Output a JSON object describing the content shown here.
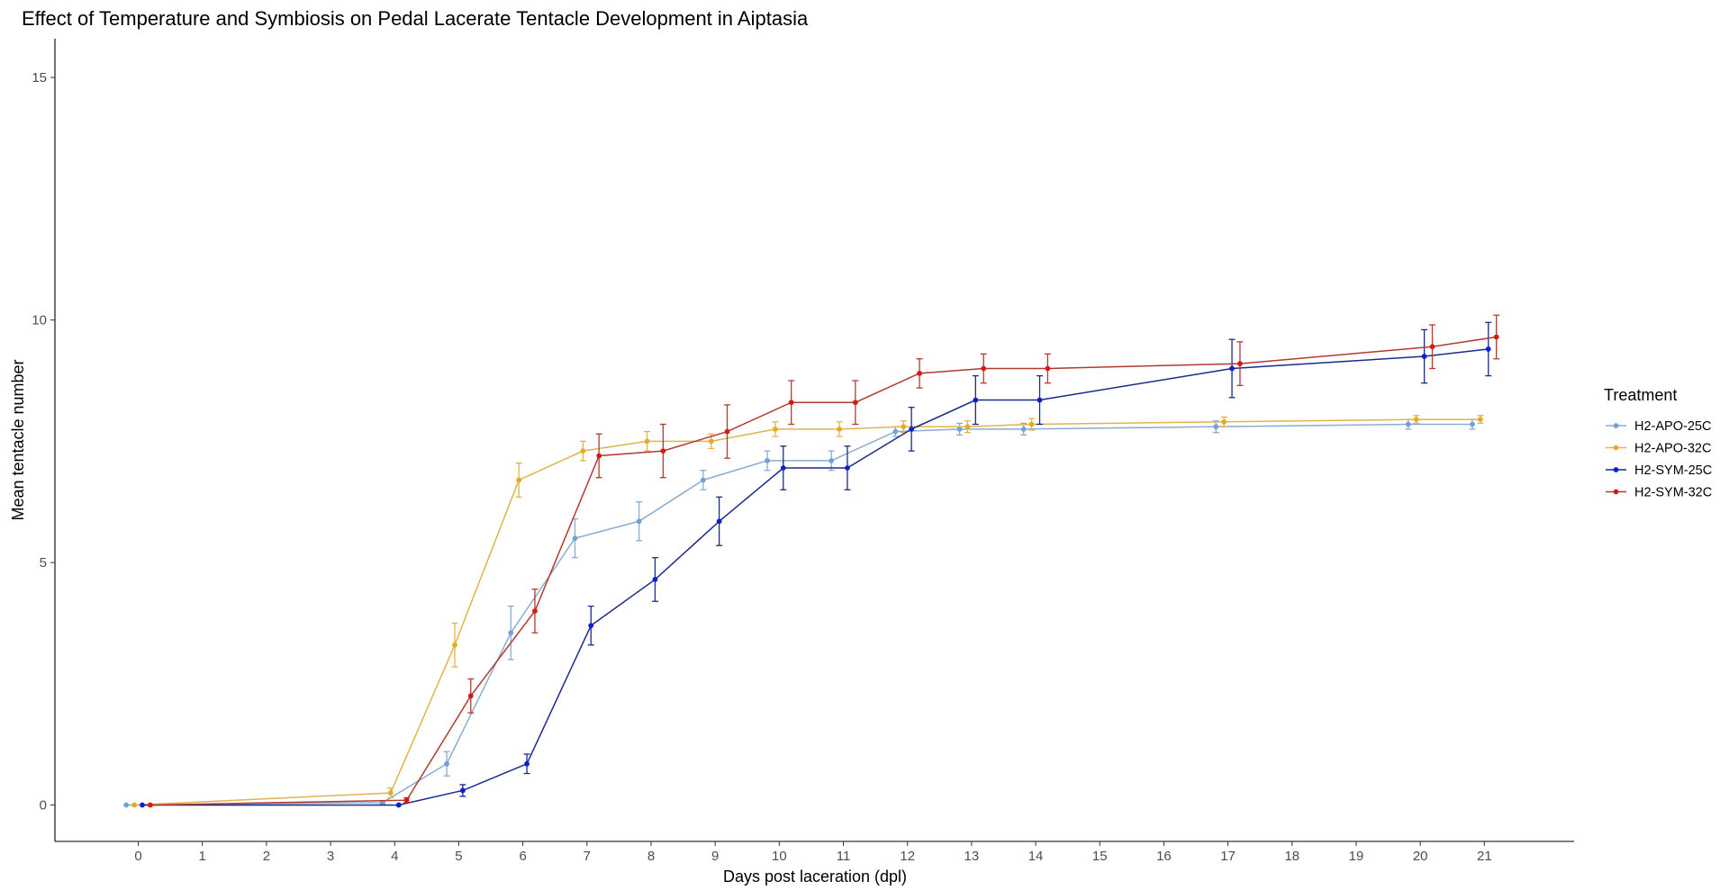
{
  "chart_data": {
    "type": "line",
    "title": "Effect of Temperature and Symbiosis on Pedal Lacerate Tentacle Development in Aiptasia",
    "xlabel": "Days post laceration (dpl)",
    "ylabel": "Mean tentacle number",
    "xlim": [
      -1.3,
      22.4
    ],
    "ylim": [
      -0.75,
      15.8
    ],
    "xticks": [
      0,
      1,
      2,
      3,
      4,
      5,
      6,
      7,
      8,
      9,
      10,
      11,
      12,
      13,
      14,
      15,
      16,
      17,
      18,
      19,
      20,
      21
    ],
    "yticks": [
      0,
      5,
      10,
      15
    ],
    "grid": false,
    "error_bars": true,
    "legend": {
      "title": "Treatment",
      "position": "right"
    },
    "series": [
      {
        "name": "H2-APO-25C",
        "color": "#6fa2d6",
        "line_color": "#8aaccf",
        "points": [
          {
            "x": 0,
            "y": 0.0,
            "err": 0.0
          },
          {
            "x": 4,
            "y": 0.05,
            "err": 0.03
          },
          {
            "x": 5,
            "y": 0.85,
            "err": 0.25
          },
          {
            "x": 6,
            "y": 3.55,
            "err": 0.55
          },
          {
            "x": 7,
            "y": 5.5,
            "err": 0.4
          },
          {
            "x": 8,
            "y": 5.85,
            "err": 0.4
          },
          {
            "x": 9,
            "y": 6.7,
            "err": 0.2
          },
          {
            "x": 10,
            "y": 7.1,
            "err": 0.2
          },
          {
            "x": 11,
            "y": 7.1,
            "err": 0.2
          },
          {
            "x": 12,
            "y": 7.7,
            "err": 0.1
          },
          {
            "x": 13,
            "y": 7.75,
            "err": 0.12
          },
          {
            "x": 14,
            "y": 7.75,
            "err": 0.12
          },
          {
            "x": 17,
            "y": 7.8,
            "err": 0.12
          },
          {
            "x": 20,
            "y": 7.85,
            "err": 0.1
          },
          {
            "x": 21,
            "y": 7.85,
            "err": 0.1
          }
        ]
      },
      {
        "name": "H2-APO-32C",
        "color": "#e6ac1f",
        "line_color": "#e0b44c",
        "points": [
          {
            "x": 0,
            "y": 0.0,
            "err": 0.0
          },
          {
            "x": 4,
            "y": 0.25,
            "err": 0.1
          },
          {
            "x": 5,
            "y": 3.3,
            "err": 0.45
          },
          {
            "x": 6,
            "y": 6.7,
            "err": 0.35
          },
          {
            "x": 7,
            "y": 7.3,
            "err": 0.2
          },
          {
            "x": 8,
            "y": 7.5,
            "err": 0.2
          },
          {
            "x": 9,
            "y": 7.5,
            "err": 0.15
          },
          {
            "x": 10,
            "y": 7.75,
            "err": 0.15
          },
          {
            "x": 11,
            "y": 7.75,
            "err": 0.15
          },
          {
            "x": 12,
            "y": 7.8,
            "err": 0.12
          },
          {
            "x": 13,
            "y": 7.8,
            "err": 0.12
          },
          {
            "x": 14,
            "y": 7.85,
            "err": 0.12
          },
          {
            "x": 17,
            "y": 7.9,
            "err": 0.1
          },
          {
            "x": 20,
            "y": 7.95,
            "err": 0.08
          },
          {
            "x": 21,
            "y": 7.95,
            "err": 0.08
          }
        ]
      },
      {
        "name": "H2-SYM-25C",
        "color": "#0b1fd6",
        "line_color": "#1c2a8c",
        "points": [
          {
            "x": 0,
            "y": 0.0,
            "err": 0.0
          },
          {
            "x": 4,
            "y": 0.0,
            "err": 0.0
          },
          {
            "x": 5,
            "y": 0.3,
            "err": 0.12
          },
          {
            "x": 6,
            "y": 0.85,
            "err": 0.2
          },
          {
            "x": 7,
            "y": 3.7,
            "err": 0.4
          },
          {
            "x": 8,
            "y": 4.65,
            "err": 0.45
          },
          {
            "x": 9,
            "y": 5.85,
            "err": 0.5
          },
          {
            "x": 10,
            "y": 6.95,
            "err": 0.45
          },
          {
            "x": 11,
            "y": 6.95,
            "err": 0.45
          },
          {
            "x": 12,
            "y": 7.75,
            "err": 0.45
          },
          {
            "x": 13,
            "y": 8.35,
            "err": 0.5
          },
          {
            "x": 14,
            "y": 8.35,
            "err": 0.5
          },
          {
            "x": 17,
            "y": 9.0,
            "err": 0.6
          },
          {
            "x": 20,
            "y": 9.25,
            "err": 0.55
          },
          {
            "x": 21,
            "y": 9.4,
            "err": 0.55
          }
        ]
      },
      {
        "name": "H2-SYM-32C",
        "color": "#d41a12",
        "line_color": "#b23a30",
        "points": [
          {
            "x": 0,
            "y": 0.0,
            "err": 0.0
          },
          {
            "x": 4,
            "y": 0.1,
            "err": 0.05
          },
          {
            "x": 5,
            "y": 2.25,
            "err": 0.35
          },
          {
            "x": 6,
            "y": 4.0,
            "err": 0.45
          },
          {
            "x": 7,
            "y": 7.2,
            "err": 0.45
          },
          {
            "x": 8,
            "y": 7.3,
            "err": 0.55
          },
          {
            "x": 9,
            "y": 7.7,
            "err": 0.55
          },
          {
            "x": 10,
            "y": 8.3,
            "err": 0.45
          },
          {
            "x": 11,
            "y": 8.3,
            "err": 0.45
          },
          {
            "x": 12,
            "y": 8.9,
            "err": 0.3
          },
          {
            "x": 13,
            "y": 9.0,
            "err": 0.3
          },
          {
            "x": 14,
            "y": 9.0,
            "err": 0.3
          },
          {
            "x": 17,
            "y": 9.1,
            "err": 0.45
          },
          {
            "x": 20,
            "y": 9.45,
            "err": 0.45
          },
          {
            "x": 21,
            "y": 9.65,
            "err": 0.45
          }
        ]
      }
    ]
  }
}
